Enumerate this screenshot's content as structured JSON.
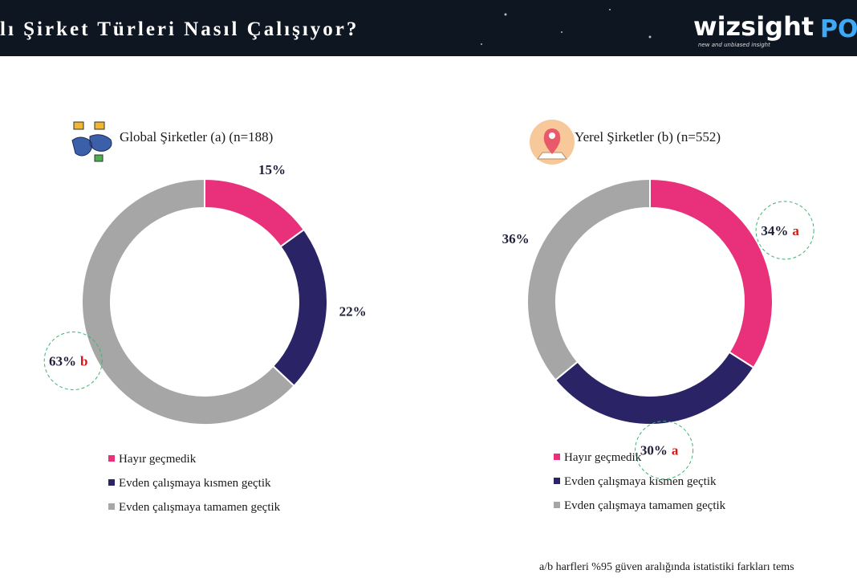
{
  "header": {
    "title": "lı Şirket Türleri Nasıl Çalışıyor?",
    "logo": "wizsight",
    "logo_tagline": "new and unbiased insight",
    "logo_partner": "PO"
  },
  "chart_data": [
    {
      "type": "pie",
      "donut": true,
      "title": "Global Şirketler (a) (n=188)",
      "categories": [
        "Hayır geçmedik",
        "Evden çalışmaya kısmen geçtik",
        "Evden çalışmaya tamamen geçtik"
      ],
      "values": [
        15,
        22,
        63
      ],
      "value_labels": [
        "15%",
        "22%",
        "63%"
      ],
      "significance": [
        null,
        null,
        "b"
      ],
      "colors": [
        "#e8317a",
        "#2a2466",
        "#a6a6a6"
      ]
    },
    {
      "type": "pie",
      "donut": true,
      "title": "Yerel Şirketler (b) (n=552)",
      "categories": [
        "Hayır geçmedik",
        "Evden çalışmaya kısmen geçtik",
        "Evden çalışmaya tamamen geçtik"
      ],
      "values": [
        34,
        30,
        36
      ],
      "value_labels": [
        "34%",
        "30%",
        "36%"
      ],
      "significance": [
        "a",
        "a",
        null
      ],
      "colors": [
        "#e8317a",
        "#2a2466",
        "#a6a6a6"
      ]
    }
  ],
  "footnote": "a/b harfleri %95 güven aralığında istatistiki farkları tems"
}
